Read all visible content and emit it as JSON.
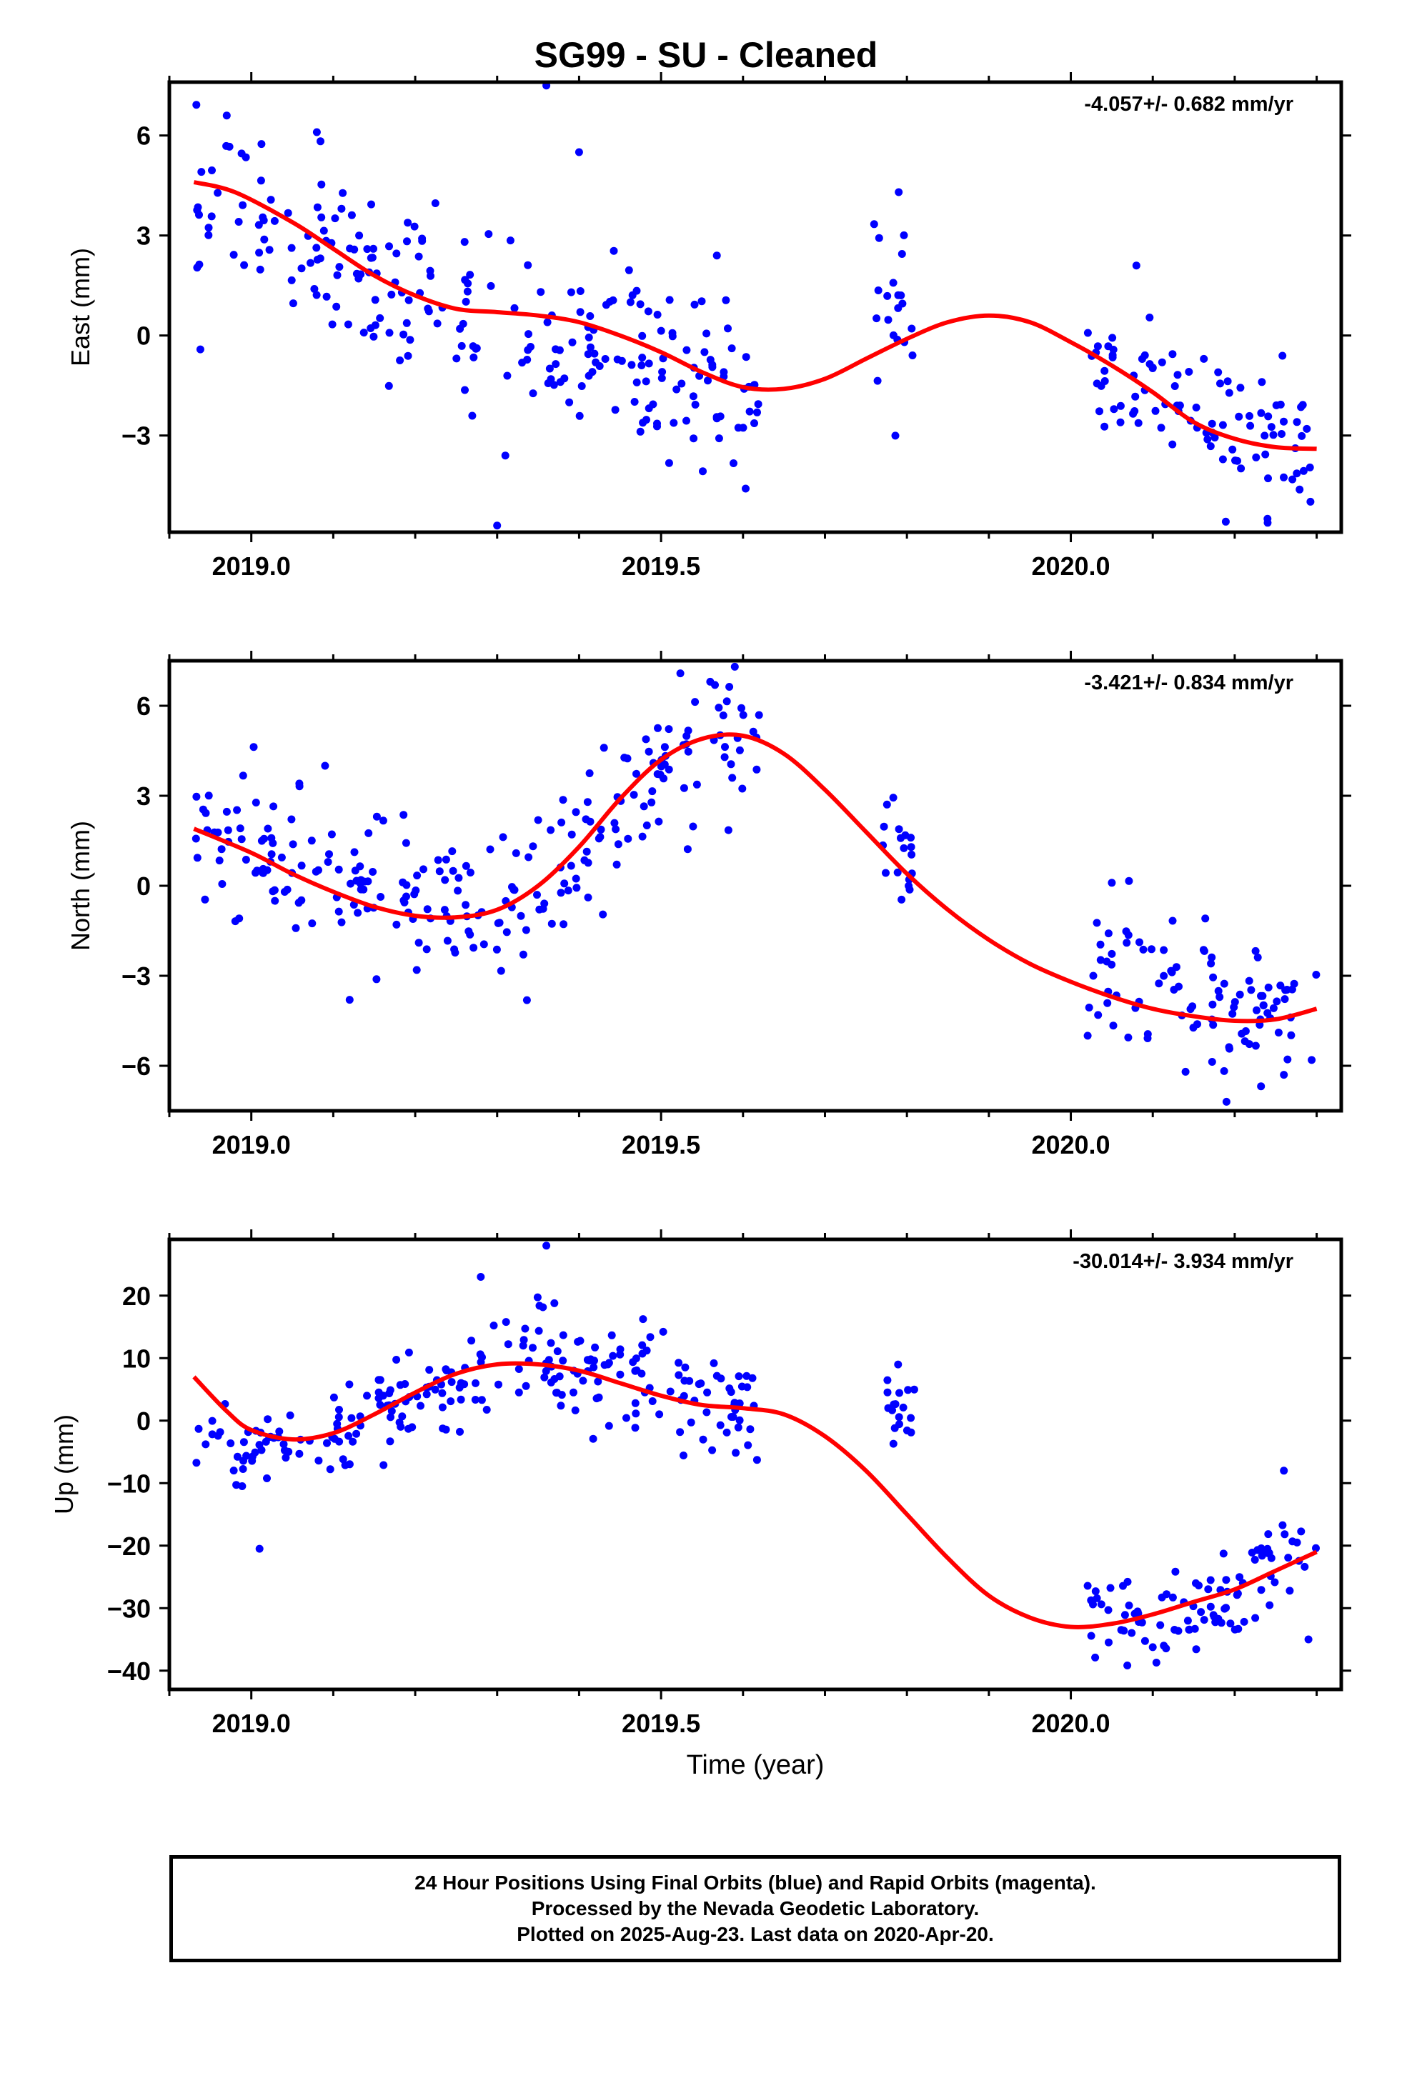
{
  "title": "SG99  - SU - Cleaned",
  "xlabel": "Time (year)",
  "caption": {
    "line1": "24 Hour Positions Using Final Orbits (blue) and Rapid Orbits (magenta).",
    "line2": "Processed by the Nevada Geodetic Laboratory.",
    "line3": "Plotted on 2025-Aug-23. Last data on 2020-Apr-20."
  },
  "colors": {
    "points": "#0000ff",
    "fit": "#ff0000",
    "axes": "#000000"
  },
  "chart_data": [
    {
      "type": "scatter",
      "panel": "east",
      "ylabel": "East (mm)",
      "annotation": "-4.057+/- 0.682 mm/yr",
      "xlim": [
        2018.9,
        2020.33
      ],
      "ylim": [
        -5.9,
        7.6
      ],
      "xticks": [
        2019.0,
        2019.5,
        2020.0
      ],
      "xtick_labels": [
        "2019.0",
        "2019.5",
        "2020.0"
      ],
      "yticks": [
        -3,
        0,
        3,
        6
      ],
      "ytick_labels": [
        "−3",
        "0",
        "3",
        "6"
      ],
      "grid": false,
      "series": [
        {
          "kind": "observations",
          "clusters": [
            {
              "x": [
                2018.93,
                2019.62
              ],
              "trend": [
                [
                  2018.93,
                  4.2
                ],
                [
                  2019.1,
                  2.2
                ],
                [
                  2019.3,
                  0.5
                ],
                [
                  2019.45,
                  -0.3
                ],
                [
                  2019.62,
                  -1.8
                ]
              ],
              "sd": 1.3,
              "n": 245
            },
            {
              "x": [
                2019.76,
                2019.81
              ],
              "trend": [
                [
                  2019.76,
                  -0.2
                ],
                [
                  2019.81,
                  0.8
                ]
              ],
              "sd": 1.3,
              "n": 20
            },
            {
              "x": [
                2020.02,
                2020.3
              ],
              "trend": [
                [
                  2020.02,
                  -0.9
                ],
                [
                  2020.15,
                  -2.3
                ],
                [
                  2020.3,
                  -3.8
                ]
              ],
              "sd": 1.0,
              "n": 95
            }
          ],
          "outliers": [
            [
              2018.97,
              6.6
            ],
            [
              2019.08,
              6.1
            ],
            [
              2019.36,
              7.5
            ],
            [
              2019.4,
              5.5
            ],
            [
              2019.3,
              -5.7
            ],
            [
              2019.31,
              -3.6
            ],
            [
              2019.79,
              4.3
            ],
            [
              2020.08,
              2.1
            ],
            [
              2020.24,
              -5.5
            ]
          ]
        },
        {
          "kind": "fit",
          "x": [
            2018.93,
            2018.98,
            2019.05,
            2019.1,
            2019.15,
            2019.2,
            2019.25,
            2019.3,
            2019.35,
            2019.4,
            2019.45,
            2019.5,
            2019.55,
            2019.6,
            2019.65,
            2019.7,
            2019.75,
            2019.8,
            2019.85,
            2019.9,
            2019.95,
            2020.0,
            2020.05,
            2020.1,
            2020.15,
            2020.2,
            2020.25,
            2020.3
          ],
          "y": [
            4.6,
            4.3,
            3.4,
            2.6,
            1.8,
            1.2,
            0.8,
            0.7,
            0.6,
            0.4,
            0.0,
            -0.5,
            -1.1,
            -1.55,
            -1.6,
            -1.3,
            -0.7,
            -0.1,
            0.4,
            0.6,
            0.4,
            -0.2,
            -0.9,
            -1.7,
            -2.6,
            -3.1,
            -3.35,
            -3.4
          ]
        }
      ]
    },
    {
      "type": "scatter",
      "panel": "north",
      "ylabel": "North (mm)",
      "annotation": "-3.421+/- 0.834 mm/yr",
      "xlim": [
        2018.9,
        2020.33
      ],
      "ylim": [
        -7.5,
        7.5
      ],
      "xticks": [
        2019.0,
        2019.5,
        2020.0
      ],
      "xtick_labels": [
        "2019.0",
        "2019.5",
        "2020.0"
      ],
      "yticks": [
        -6,
        -3,
        0,
        3,
        6
      ],
      "ytick_labels": [
        "−6",
        "−3",
        "0",
        "3",
        "6"
      ],
      "grid": false,
      "series": [
        {
          "kind": "observations",
          "clusters": [
            {
              "x": [
                2018.93,
                2019.62
              ],
              "trend": [
                [
                  2018.93,
                  1.5
                ],
                [
                  2019.1,
                  0.2
                ],
                [
                  2019.25,
                  -1.0
                ],
                [
                  2019.35,
                  -0.3
                ],
                [
                  2019.45,
                  2.5
                ],
                [
                  2019.55,
                  4.8
                ],
                [
                  2019.6,
                  5.0
                ]
              ],
              "sd": 1.2,
              "n": 245
            },
            {
              "x": [
                2019.77,
                2019.81
              ],
              "trend": [
                [
                  2019.77,
                  2.0
                ],
                [
                  2019.81,
                  1.0
                ]
              ],
              "sd": 1.1,
              "n": 18
            },
            {
              "x": [
                2020.02,
                2020.3
              ],
              "trend": [
                [
                  2020.02,
                  -3.0
                ],
                [
                  2020.15,
                  -3.8
                ],
                [
                  2020.3,
                  -4.2
                ]
              ],
              "sd": 1.1,
              "n": 95
            }
          ],
          "outliers": [
            [
              2019.09,
              4.0
            ],
            [
              2019.12,
              -3.8
            ],
            [
              2019.59,
              7.3
            ],
            [
              2019.56,
              6.8
            ],
            [
              2020.05,
              0.1
            ],
            [
              2020.19,
              -7.2
            ],
            [
              2020.26,
              -6.3
            ],
            [
              2020.14,
              -6.2
            ]
          ]
        },
        {
          "kind": "fit",
          "x": [
            2018.93,
            2019.0,
            2019.05,
            2019.1,
            2019.15,
            2019.2,
            2019.25,
            2019.3,
            2019.35,
            2019.4,
            2019.45,
            2019.5,
            2019.55,
            2019.6,
            2019.65,
            2019.7,
            2019.75,
            2019.8,
            2019.85,
            2019.9,
            2019.95,
            2020.0,
            2020.05,
            2020.1,
            2020.15,
            2020.2,
            2020.25,
            2020.3
          ],
          "y": [
            1.9,
            1.1,
            0.4,
            -0.2,
            -0.7,
            -1.0,
            -1.05,
            -0.8,
            0.0,
            1.3,
            2.9,
            4.2,
            4.9,
            5.0,
            4.4,
            3.2,
            1.8,
            0.4,
            -0.8,
            -1.8,
            -2.6,
            -3.2,
            -3.7,
            -4.1,
            -4.35,
            -4.5,
            -4.45,
            -4.1
          ]
        }
      ]
    },
    {
      "type": "scatter",
      "panel": "up",
      "ylabel": "Up (mm)",
      "annotation": "-30.014+/- 3.934 mm/yr",
      "xlim": [
        2018.9,
        2020.33
      ],
      "ylim": [
        -43,
        29
      ],
      "xticks": [
        2019.0,
        2019.5,
        2020.0
      ],
      "xtick_labels": [
        "2019.0",
        "2019.5",
        "2020.0"
      ],
      "yticks": [
        -40,
        -30,
        -20,
        -10,
        0,
        10,
        20
      ],
      "ytick_labels": [
        "−40",
        "−30",
        "−20",
        "−10",
        "0",
        "10",
        "20"
      ],
      "grid": false,
      "series": [
        {
          "kind": "observations",
          "clusters": [
            {
              "x": [
                2018.93,
                2019.62
              ],
              "trend": [
                [
                  2018.93,
                  -3
                ],
                [
                  2019.08,
                  -4
                ],
                [
                  2019.2,
                  3
                ],
                [
                  2019.32,
                  10
                ],
                [
                  2019.45,
                  8
                ],
                [
                  2019.55,
                  4
                ],
                [
                  2019.62,
                  2
                ]
              ],
              "sd": 4.0,
              "n": 245
            },
            {
              "x": [
                2019.77,
                2019.81
              ],
              "trend": [
                [
                  2019.77,
                  4
                ],
                [
                  2019.81,
                  1
                ]
              ],
              "sd": 3.5,
              "n": 18
            },
            {
              "x": [
                2020.02,
                2020.3
              ],
              "trend": [
                [
                  2020.02,
                  -30
                ],
                [
                  2020.1,
                  -35
                ],
                [
                  2020.2,
                  -28
                ],
                [
                  2020.3,
                  -21
                ]
              ],
              "sd": 4.0,
              "n": 95
            }
          ],
          "outliers": [
            [
              2019.01,
              -20.5
            ],
            [
              2019.36,
              28
            ],
            [
              2019.28,
              23
            ],
            [
              2020.26,
              -8
            ],
            [
              2020.29,
              -35
            ]
          ]
        },
        {
          "kind": "fit",
          "x": [
            2018.93,
            2018.97,
            2019.0,
            2019.05,
            2019.1,
            2019.15,
            2019.2,
            2019.25,
            2019.3,
            2019.35,
            2019.4,
            2019.45,
            2019.5,
            2019.55,
            2019.6,
            2019.65,
            2019.7,
            2019.75,
            2019.8,
            2019.85,
            2019.9,
            2019.95,
            2020.0,
            2020.05,
            2020.1,
            2020.15,
            2020.2,
            2020.25,
            2020.3
          ],
          "y": [
            7,
            1.5,
            -1.5,
            -3,
            -2,
            1,
            4.5,
            7.5,
            9,
            9,
            8,
            6,
            4,
            2.5,
            2,
            1,
            -2.5,
            -8,
            -15,
            -22,
            -28,
            -31.5,
            -33,
            -32.5,
            -31,
            -29,
            -27,
            -24,
            -21
          ]
        }
      ]
    }
  ]
}
